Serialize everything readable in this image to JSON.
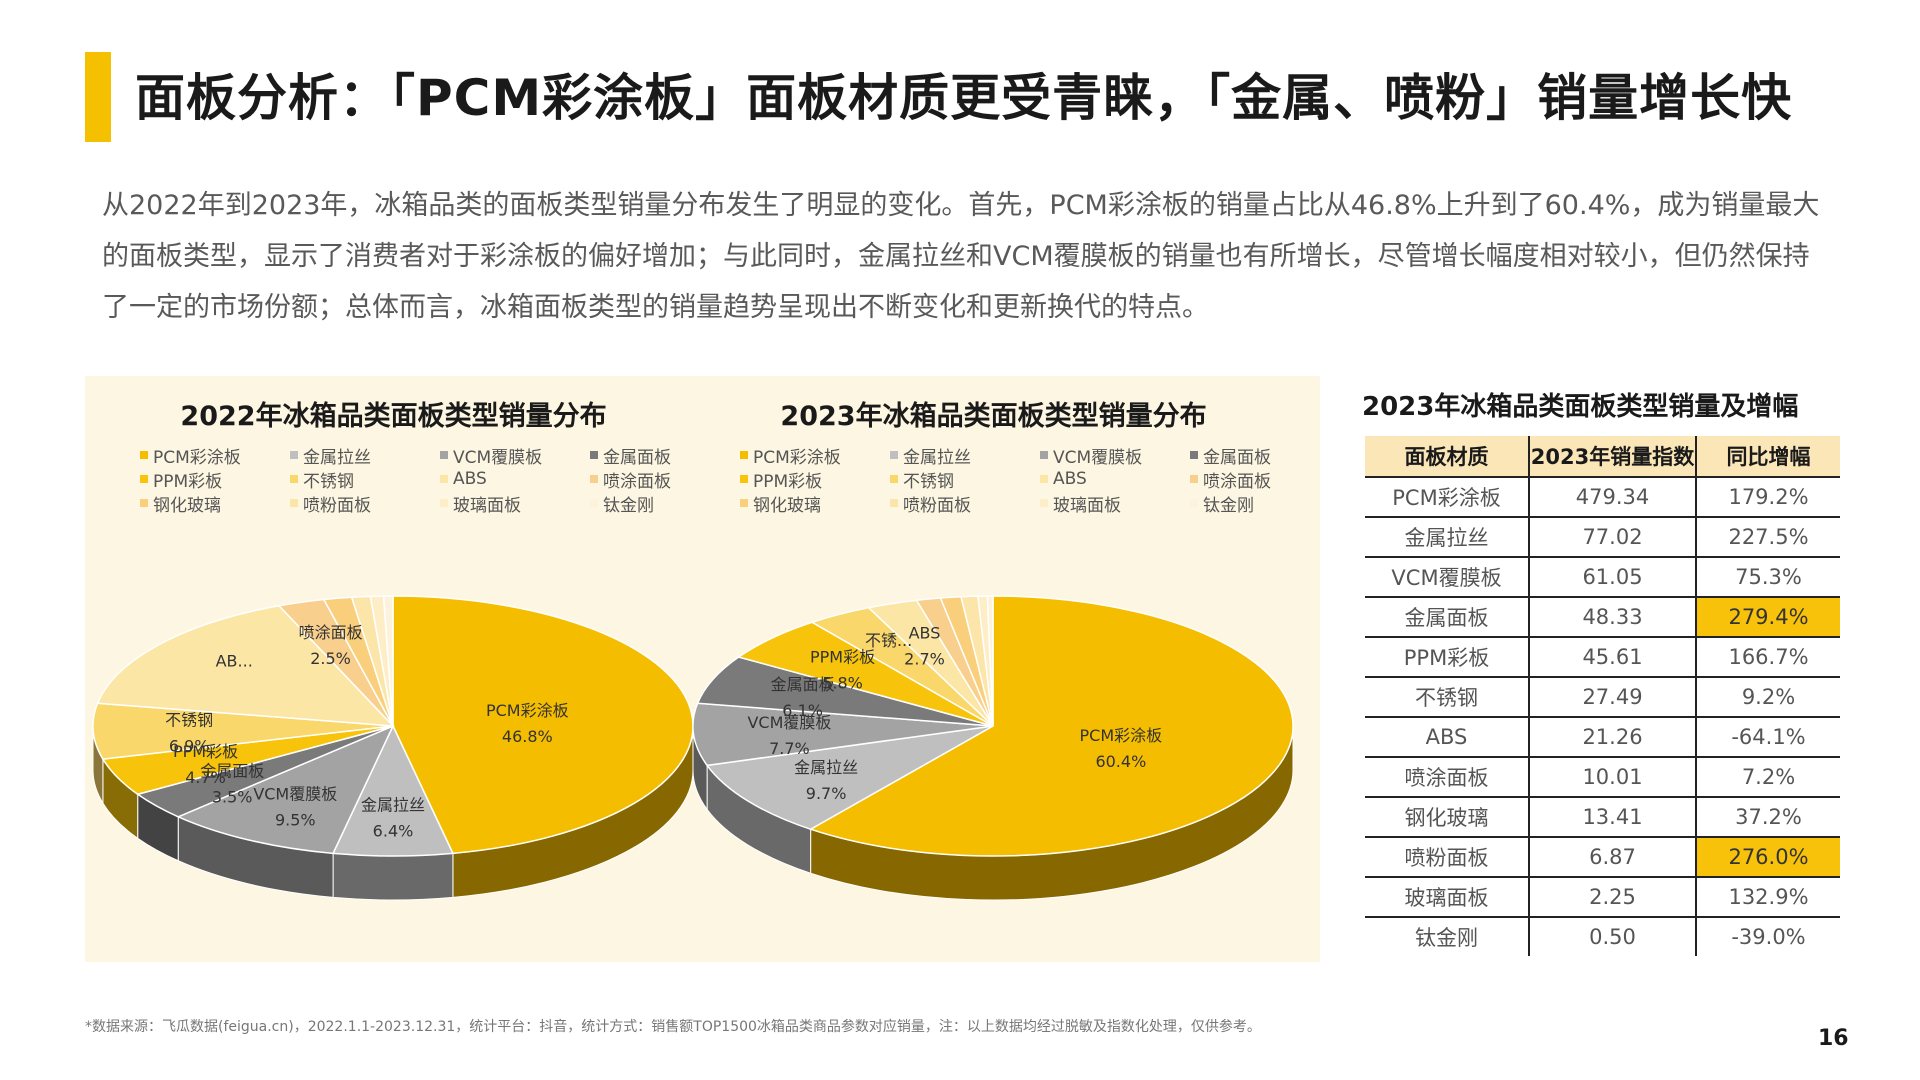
{
  "page": {
    "title": "面板分析：「PCM彩涂板」面板材质更受青睐，「金属、喷粉」销量增长快",
    "intro": "从2022年到2023年，冰箱品类的面板类型销量分布发生了明显的变化。首先，PCM彩涂板的销量占比从46.8%上升到了60.4%，成为销量最大的面板类型，显示了消费者对于彩涂板的偏好增加；与此同时，金属拉丝和VCM覆膜板的销量也有所增长，尽管增长幅度相对较小，但仍然保持了一定的市场份额；总体而言，冰箱面板类型的销量趋势呈现出不断变化和更新换代的特点。",
    "footnote": "*数据来源：飞瓜数据(feigua.cn)，2022.1.1-2023.12.31，统计平台：抖音，统计方式：销售额TOP1500冰箱品类商品参数对应销量，注：以上数据均经过脱敏及指数化处理，仅供参考。",
    "page_number": "16"
  },
  "legend": [
    {
      "label": "PCM彩涂板",
      "color": "#f5bd00"
    },
    {
      "label": "金属拉丝",
      "color": "#bfbfbf"
    },
    {
      "label": "VCM覆膜板",
      "color": "#a3a3a3"
    },
    {
      "label": "金属面板",
      "color": "#7a7a7a"
    },
    {
      "label": "PPM彩板",
      "color": "#f7c40b"
    },
    {
      "label": "不锈钢",
      "color": "#fad76a"
    },
    {
      "label": "ABS",
      "color": "#fce6a6"
    },
    {
      "label": "喷涂面板",
      "color": "#f8cf8c"
    },
    {
      "label": "钢化玻璃",
      "color": "#f9cf7c"
    },
    {
      "label": "喷粉面板",
      "color": "#fbe5a8"
    },
    {
      "label": "玻璃面板",
      "color": "#fdeec7"
    },
    {
      "label": "钛金刚",
      "color": "#fdf3dc"
    }
  ],
  "chart_data": [
    {
      "type": "pie",
      "title": "2022年冰箱品类面板类型销量分布",
      "slices": [
        {
          "name": "PCM彩涂板",
          "value": 46.8,
          "label": "PCM彩涂板",
          "pct": "46.8%"
        },
        {
          "name": "金属拉丝",
          "value": 6.4,
          "label": "金属拉丝",
          "pct": "6.4%"
        },
        {
          "name": "VCM覆膜板",
          "value": 9.5,
          "label": "VCM覆膜板",
          "pct": "9.5%"
        },
        {
          "name": "金属面板",
          "value": 3.5,
          "label": "金属面板",
          "pct": "3.5%"
        },
        {
          "name": "PPM彩板",
          "value": 4.7,
          "label": "PPM彩板",
          "pct": "4.7%"
        },
        {
          "name": "不锈钢",
          "value": 6.9,
          "label": "不锈钢",
          "pct": "6.9%"
        },
        {
          "name": "ABS",
          "value": 16.0,
          "label": "AB...",
          "pct": ""
        },
        {
          "name": "喷涂面板",
          "value": 2.5,
          "label": "喷涂面板",
          "pct": "2.5%"
        },
        {
          "name": "钢化玻璃",
          "value": 1.5,
          "label": "",
          "pct": ""
        },
        {
          "name": "喷粉面板",
          "value": 1.0,
          "label": "",
          "pct": ""
        },
        {
          "name": "玻璃面板",
          "value": 0.7,
          "label": "",
          "pct": ""
        },
        {
          "name": "钛金刚",
          "value": 0.5,
          "label": "",
          "pct": ""
        }
      ]
    },
    {
      "type": "pie",
      "title": "2023年冰箱品类面板类型销量分布",
      "slices": [
        {
          "name": "PCM彩涂板",
          "value": 60.4,
          "label": "PCM彩涂板",
          "pct": "60.4%"
        },
        {
          "name": "金属拉丝",
          "value": 9.7,
          "label": "金属拉丝",
          "pct": "9.7%"
        },
        {
          "name": "VCM覆膜板",
          "value": 7.7,
          "label": "VCM覆膜板",
          "pct": "7.7%"
        },
        {
          "name": "金属面板",
          "value": 6.1,
          "label": "金属面板",
          "pct": "6.1%"
        },
        {
          "name": "PPM彩板",
          "value": 5.8,
          "label": "PPM彩板",
          "pct": "5.8%"
        },
        {
          "name": "不锈钢",
          "value": 3.5,
          "label": "不锈...",
          "pct": ""
        },
        {
          "name": "ABS",
          "value": 2.7,
          "label": "ABS",
          "pct": "2.7%"
        },
        {
          "name": "喷涂面板",
          "value": 1.3,
          "label": "",
          "pct": ""
        },
        {
          "name": "钢化玻璃",
          "value": 1.1,
          "label": "",
          "pct": ""
        },
        {
          "name": "喷粉面板",
          "value": 0.9,
          "label": "",
          "pct": ""
        },
        {
          "name": "玻璃面板",
          "value": 0.5,
          "label": "",
          "pct": ""
        },
        {
          "name": "钛金刚",
          "value": 0.3,
          "label": "",
          "pct": ""
        }
      ]
    }
  ],
  "table": {
    "title": "2023年冰箱品类面板类型销量及增幅",
    "headers": [
      "面板材质",
      "2023年销量指数",
      "同比增幅"
    ],
    "rows": [
      {
        "material": "PCM彩涂板",
        "index": "479.34",
        "growth": "179.2%",
        "highlight": false
      },
      {
        "material": "金属拉丝",
        "index": "77.02",
        "growth": "227.5%",
        "highlight": false
      },
      {
        "material": "VCM覆膜板",
        "index": "61.05",
        "growth": "75.3%",
        "highlight": false
      },
      {
        "material": "金属面板",
        "index": "48.33",
        "growth": "279.4%",
        "highlight": true
      },
      {
        "material": "PPM彩板",
        "index": "45.61",
        "growth": "166.7%",
        "highlight": false
      },
      {
        "material": "不锈钢",
        "index": "27.49",
        "growth": "9.2%",
        "highlight": false
      },
      {
        "material": "ABS",
        "index": "21.26",
        "growth": "-64.1%",
        "highlight": false
      },
      {
        "material": "喷涂面板",
        "index": "10.01",
        "growth": "7.2%",
        "highlight": false
      },
      {
        "material": "钢化玻璃",
        "index": "13.41",
        "growth": "37.2%",
        "highlight": false
      },
      {
        "material": "喷粉面板",
        "index": "6.87",
        "growth": "276.0%",
        "highlight": true
      },
      {
        "material": "玻璃面板",
        "index": "2.25",
        "growth": "132.9%",
        "highlight": false
      },
      {
        "material": "钛金刚",
        "index": "0.50",
        "growth": "-39.0%",
        "highlight": false
      }
    ]
  }
}
